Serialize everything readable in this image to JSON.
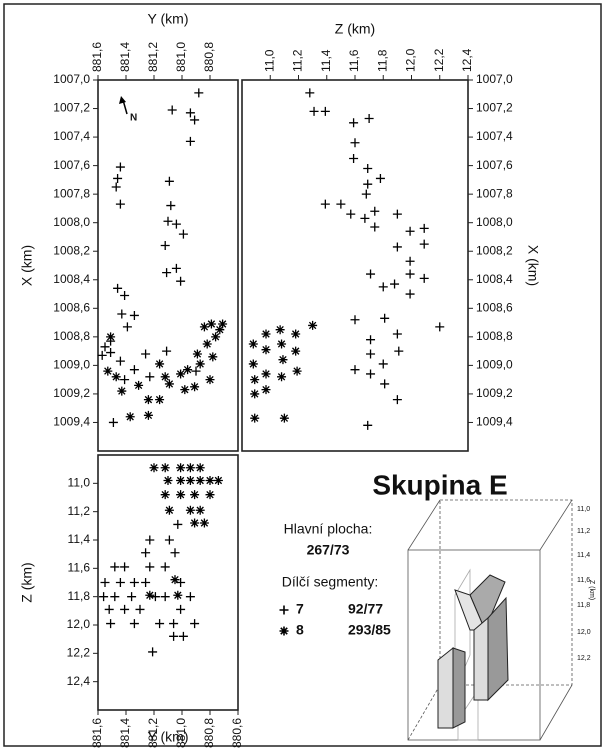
{
  "chart_data": [
    {
      "type": "scatter",
      "xlabel": "Y (km)",
      "ylabel": "X (km)",
      "x_axis_position": "top",
      "y_axis_position": "left",
      "xlim": [
        881.6,
        880.6
      ],
      "ylim": [
        1009.6,
        1007.0
      ],
      "xticks": [
        {
          "value": 881.6,
          "label": "881,6"
        },
        {
          "value": 881.4,
          "label": "881,4"
        },
        {
          "value": 881.2,
          "label": "881,2"
        },
        {
          "value": 881.0,
          "label": "881,0"
        },
        {
          "value": 880.8,
          "label": "880,8"
        }
      ],
      "yticks": [
        {
          "value": 1007.0,
          "label": "1007,0"
        },
        {
          "value": 1007.2,
          "label": "1007,2"
        },
        {
          "value": 1007.4,
          "label": "1007,4"
        },
        {
          "value": 1007.6,
          "label": "1007,6"
        },
        {
          "value": 1007.8,
          "label": "1007,8"
        },
        {
          "value": 1008.0,
          "label": "1008,0"
        },
        {
          "value": 1008.2,
          "label": "1008,2"
        },
        {
          "value": 1008.4,
          "label": "1008,4"
        },
        {
          "value": 1008.6,
          "label": "1008,6"
        },
        {
          "value": 1008.8,
          "label": "1008,8"
        },
        {
          "value": 1009.0,
          "label": "1009,0"
        },
        {
          "value": 1009.2,
          "label": "1009,2"
        },
        {
          "value": 1009.4,
          "label": "1009,4"
        }
      ],
      "north_label": "N",
      "series": [
        {
          "name": "7",
          "orientation": "92/77",
          "marker": "plus",
          "color": "#000000",
          "x": [
            880.88,
            881.07,
            880.94,
            880.91,
            880.94,
            881.44,
            881.46,
            881.44,
            881.47,
            881.09,
            881.08,
            881.1,
            881.04,
            880.99,
            881.12,
            881.11,
            881.04,
            881.01,
            881.46,
            881.41,
            881.43,
            881.34,
            881.39,
            881.51,
            881.55,
            881.57,
            881.51,
            881.44,
            881.41,
            881.34,
            881.49,
            881.26,
            881.23,
            880.9,
            881.11
          ],
          "values": [
            1007.09,
            1007.21,
            1007.23,
            1007.28,
            1007.43,
            1007.61,
            1007.69,
            1007.87,
            1007.75,
            1007.71,
            1007.88,
            1007.99,
            1008.01,
            1008.08,
            1008.16,
            1008.35,
            1008.32,
            1008.41,
            1008.46,
            1008.51,
            1008.64,
            1008.65,
            1008.73,
            1008.83,
            1008.87,
            1008.93,
            1008.91,
            1008.97,
            1009.1,
            1009.03,
            1009.4,
            1008.92,
            1009.08,
            1009.04,
            1008.9
          ]
        },
        {
          "name": "8",
          "orientation": "293/85",
          "marker": "star",
          "color": "#000000",
          "x": [
            881.51,
            881.53,
            881.47,
            881.43,
            881.31,
            881.24,
            881.16,
            881.09,
            881.01,
            880.96,
            880.87,
            880.82,
            880.76,
            880.73,
            880.79,
            880.84,
            880.8,
            880.78,
            880.89,
            881.16,
            881.12,
            881.37,
            881.24,
            880.98,
            880.71,
            880.91
          ],
          "values": [
            1008.8,
            1009.04,
            1009.08,
            1009.18,
            1009.14,
            1009.24,
            1009.24,
            1009.13,
            1009.06,
            1009.03,
            1008.99,
            1008.85,
            1008.8,
            1008.75,
            1008.71,
            1008.73,
            1009.1,
            1008.94,
            1008.92,
            1008.99,
            1009.08,
            1009.36,
            1009.35,
            1009.17,
            1008.71,
            1009.15
          ]
        }
      ]
    },
    {
      "type": "scatter",
      "xlabel": "Z (km)",
      "ylabel": "X (km)",
      "x_axis_position": "top",
      "y_axis_position": "right",
      "xlim": [
        10.8,
        12.4
      ],
      "ylim": [
        1009.6,
        1007.0
      ],
      "xticks": [
        {
          "value": 11.0,
          "label": "11,0"
        },
        {
          "value": 11.2,
          "label": "11,2"
        },
        {
          "value": 11.4,
          "label": "11,4"
        },
        {
          "value": 11.6,
          "label": "11,6"
        },
        {
          "value": 11.8,
          "label": "11,8"
        },
        {
          "value": 12.0,
          "label": "12,0"
        },
        {
          "value": 12.2,
          "label": "12,2"
        },
        {
          "value": 12.4,
          "label": "12,4"
        }
      ],
      "yticks": [
        {
          "value": 1007.0,
          "label": "1007,0"
        },
        {
          "value": 1007.2,
          "label": "1007,2"
        },
        {
          "value": 1007.4,
          "label": "1007,4"
        },
        {
          "value": 1007.6,
          "label": "1007,6"
        },
        {
          "value": 1007.8,
          "label": "1007,8"
        },
        {
          "value": 1008.0,
          "label": "1008,0"
        },
        {
          "value": 1008.2,
          "label": "1008,2"
        },
        {
          "value": 1008.4,
          "label": "1008,4"
        },
        {
          "value": 1008.6,
          "label": "1008,6"
        },
        {
          "value": 1008.8,
          "label": "1008,8"
        },
        {
          "value": 1009.0,
          "label": "1009,0"
        },
        {
          "value": 1009.2,
          "label": "1009,2"
        },
        {
          "value": 1009.4,
          "label": "1009,4"
        }
      ],
      "series": [
        {
          "marker": "plus",
          "color": "#000000",
          "x": [
            11.28,
            11.31,
            11.39,
            11.59,
            11.7,
            11.6,
            11.59,
            11.69,
            11.69,
            11.68,
            11.78,
            11.39,
            11.5,
            11.57,
            11.67,
            11.74,
            11.74,
            11.9,
            11.99,
            12.09,
            12.09,
            11.9,
            11.99,
            11.71,
            11.88,
            11.99,
            11.99,
            12.09,
            11.8,
            12.2,
            11.6,
            11.81,
            11.9,
            11.91,
            11.71,
            11.71,
            11.71,
            11.6,
            11.9,
            11.69,
            11.8,
            11.81
          ],
          "values": [
            1007.09,
            1007.22,
            1007.22,
            1007.3,
            1007.27,
            1007.44,
            1007.55,
            1007.62,
            1007.73,
            1007.8,
            1007.69,
            1007.87,
            1007.87,
            1007.94,
            1007.97,
            1007.92,
            1008.03,
            1007.94,
            1008.06,
            1008.04,
            1008.15,
            1008.17,
            1008.27,
            1008.36,
            1008.43,
            1008.36,
            1008.5,
            1008.39,
            1008.45,
            1008.73,
            1008.68,
            1008.67,
            1008.78,
            1008.9,
            1008.82,
            1008.92,
            1009.06,
            1009.03,
            1009.24,
            1009.42,
            1008.99,
            1009.13
          ]
        },
        {
          "marker": "star",
          "color": "#000000",
          "x": [
            10.88,
            10.88,
            10.89,
            10.89,
            10.89,
            10.97,
            10.97,
            10.97,
            10.97,
            11.07,
            11.08,
            11.09,
            11.08,
            11.1,
            11.18,
            11.18,
            11.19,
            11.3
          ],
          "values": [
            1008.85,
            1008.99,
            1009.1,
            1009.2,
            1009.37,
            1008.78,
            1008.89,
            1009.06,
            1009.17,
            1008.75,
            1008.85,
            1008.96,
            1009.08,
            1009.37,
            1008.78,
            1008.9,
            1009.04,
            1008.72
          ]
        }
      ]
    },
    {
      "type": "scatter",
      "xlabel": "Y (km)",
      "ylabel": "Z (km)",
      "x_axis_position": "bottom",
      "y_axis_position": "left",
      "xlim": [
        881.6,
        880.6
      ],
      "ylim": [
        12.6,
        10.8
      ],
      "xticks": [
        {
          "value": 881.6,
          "label": "881,6"
        },
        {
          "value": 881.4,
          "label": "881,4"
        },
        {
          "value": 881.2,
          "label": "881,2"
        },
        {
          "value": 881.0,
          "label": "881,0"
        },
        {
          "value": 880.8,
          "label": "880,8"
        },
        {
          "value": 880.6,
          "label": "880,6"
        }
      ],
      "yticks": [
        {
          "value": 11.0,
          "label": "11,0"
        },
        {
          "value": 11.2,
          "label": "11,2"
        },
        {
          "value": 11.4,
          "label": "11,4"
        },
        {
          "value": 11.6,
          "label": "11,6"
        },
        {
          "value": 11.8,
          "label": "11,8"
        },
        {
          "value": 12.0,
          "label": "12,0"
        },
        {
          "value": 12.2,
          "label": "12,2"
        },
        {
          "value": 12.4,
          "label": "12,4"
        }
      ],
      "series": [
        {
          "marker": "plus",
          "color": "#000000",
          "x": [
            881.48,
            881.41,
            881.55,
            881.44,
            881.34,
            881.56,
            881.48,
            881.36,
            881.52,
            881.41,
            881.51,
            881.34,
            881.3,
            881.26,
            881.26,
            881.23,
            881.23,
            881.12,
            881.09,
            881.05,
            881.01,
            881.12,
            881.01,
            881.16,
            881.06,
            881.06,
            880.99,
            880.94,
            880.91,
            881.19,
            881.21,
            881.03
          ],
          "values": [
            11.59,
            11.59,
            11.7,
            11.7,
            11.7,
            11.8,
            11.8,
            11.8,
            11.89,
            11.89,
            11.99,
            11.99,
            11.89,
            11.7,
            11.49,
            11.4,
            11.59,
            11.59,
            11.4,
            11.49,
            11.7,
            11.8,
            11.89,
            11.99,
            11.99,
            12.08,
            12.08,
            11.8,
            11.99,
            11.8,
            12.19,
            11.29
          ]
        },
        {
          "marker": "star",
          "color": "#000000",
          "x": [
            881.2,
            881.12,
            881.01,
            880.94,
            880.87,
            881.1,
            881.01,
            880.94,
            880.87,
            880.8,
            880.74,
            881.12,
            881.01,
            880.91,
            880.8,
            881.09,
            880.94,
            880.87,
            880.91,
            880.84,
            881.23,
            881.03,
            881.05
          ],
          "values": [
            10.89,
            10.89,
            10.89,
            10.89,
            10.89,
            10.98,
            10.98,
            10.98,
            10.98,
            10.98,
            10.98,
            11.08,
            11.08,
            11.08,
            11.08,
            11.19,
            11.19,
            11.19,
            11.28,
            11.28,
            11.79,
            11.79,
            11.68
          ]
        }
      ]
    }
  ],
  "title": "Skupina E",
  "legend": {
    "main_plane_label": "Hlavní plocha:",
    "main_plane": "267/73",
    "segments_label": "Dílčí segmenty:"
  },
  "inset": {
    "axis_label": "Z (km)",
    "z_ticks": [
      "11,0",
      "11,2",
      "11,4",
      "11,6",
      "11,8",
      "12,0",
      "12,2"
    ]
  }
}
